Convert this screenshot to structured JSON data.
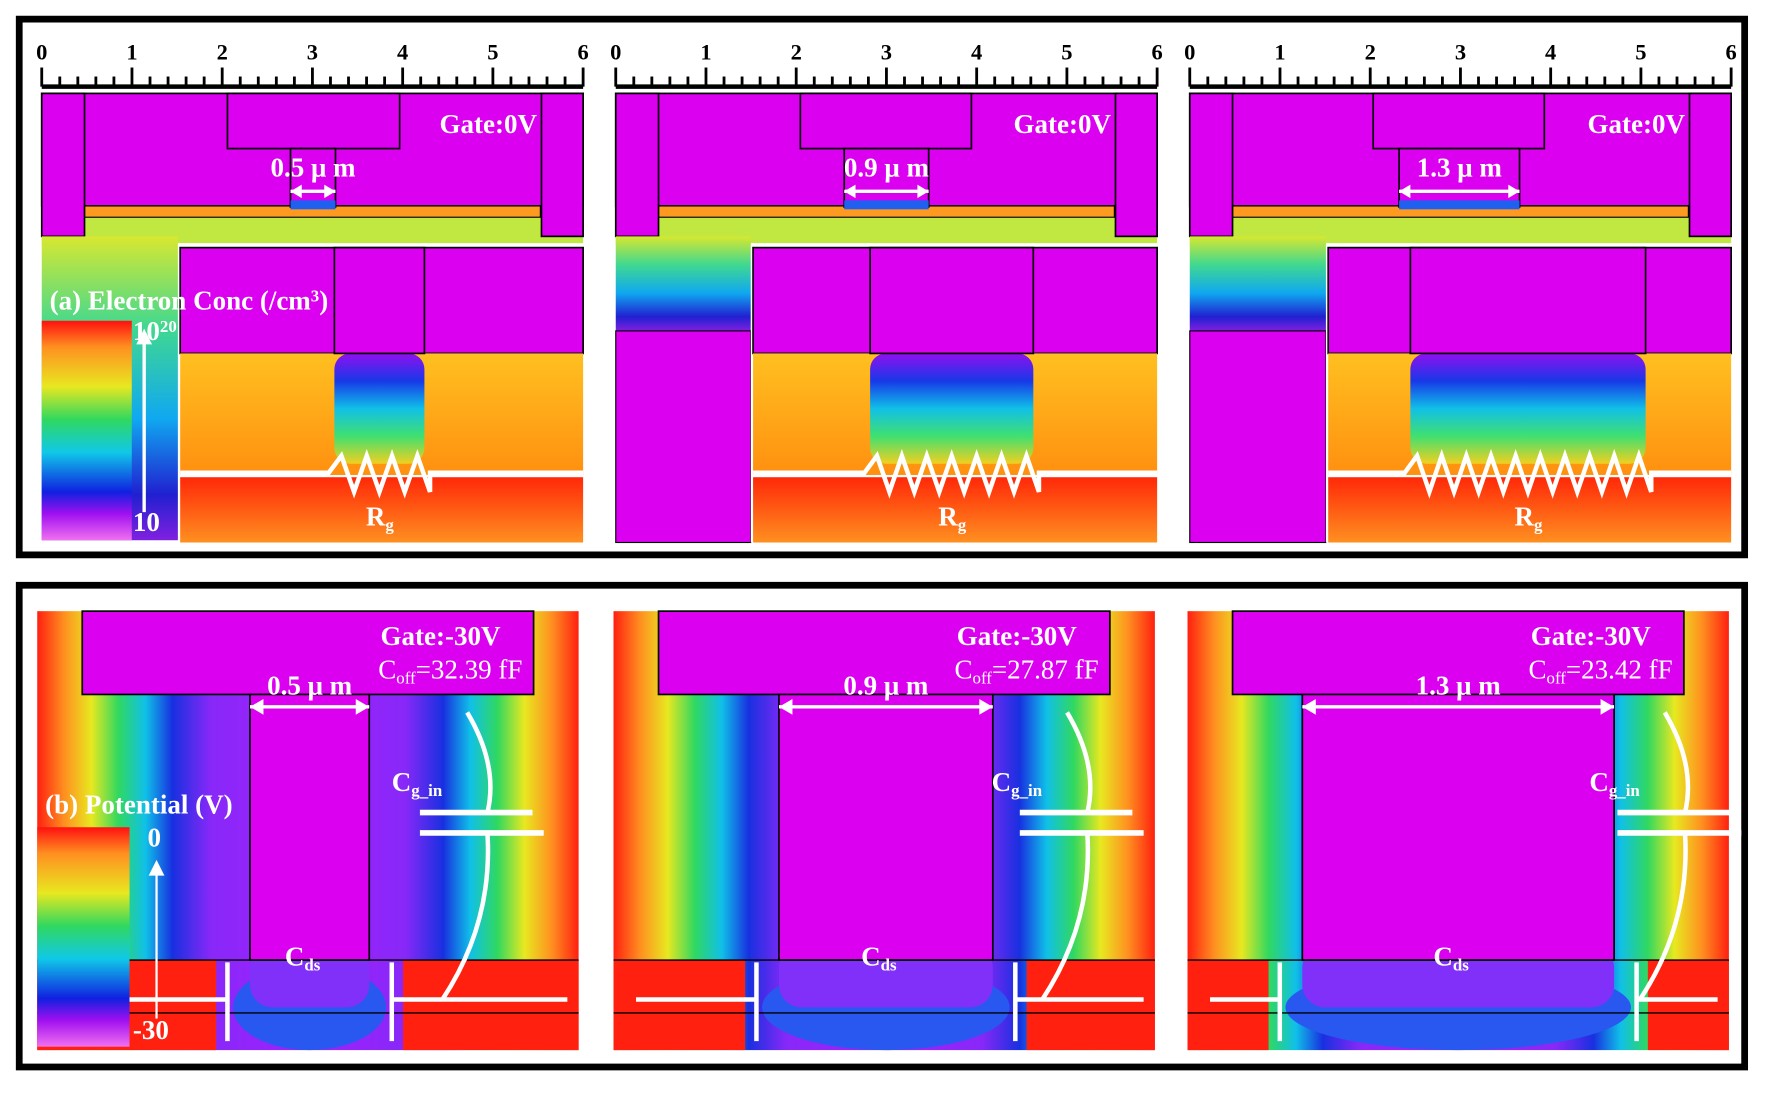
{
  "panel_a": {
    "label": {
      "text": "(a) Electron Conc (/cm",
      "sup": "3",
      "end": ")"
    },
    "colorbar": {
      "top": {
        "base": "10",
        "exp": "20"
      },
      "bottom": "10"
    },
    "subpanels": [
      {
        "ruler": [
          0,
          1,
          2,
          3,
          4,
          5,
          6
        ],
        "gate": "Gate:0V",
        "width": "0.5 μ m",
        "resistor": {
          "main": "R",
          "sub": "g"
        }
      },
      {
        "ruler": [
          0,
          1,
          2,
          3,
          4,
          5,
          6
        ],
        "gate": "Gate:0V",
        "width": "0.9 μ m",
        "resistor": {
          "main": "R",
          "sub": "g"
        }
      },
      {
        "ruler": [
          0,
          1,
          2,
          3,
          4,
          5,
          6
        ],
        "gate": "Gate:0V",
        "width": "1.3 μ m",
        "resistor": {
          "main": "R",
          "sub": "g"
        }
      }
    ]
  },
  "panel_b": {
    "label": "(b) Potential (V)",
    "colorbar": {
      "top": "0",
      "bottom": "-30"
    },
    "subpanels": [
      {
        "gate": "Gate:-30V",
        "coff": {
          "main": "C",
          "sub": "off",
          "value": "=32.39 fF"
        },
        "width": "0.5 μ m",
        "cg": {
          "main": "C",
          "sub": "g_in"
        },
        "cds": {
          "main": "C",
          "sub": "ds"
        }
      },
      {
        "gate": "Gate:-30V",
        "coff": {
          "main": "C",
          "sub": "off",
          "value": "=27.87 fF"
        },
        "width": "0.9 μ m",
        "cg": {
          "main": "C",
          "sub": "g_in"
        },
        "cds": {
          "main": "C",
          "sub": "ds"
        }
      },
      {
        "gate": "Gate:-30V",
        "coff": {
          "main": "C",
          "sub": "off",
          "value": "=23.42 fF"
        },
        "width": "1.3 μ m",
        "cg": {
          "main": "C",
          "sub": "g_in"
        },
        "cds": {
          "main": "C",
          "sub": "ds"
        }
      }
    ]
  }
}
